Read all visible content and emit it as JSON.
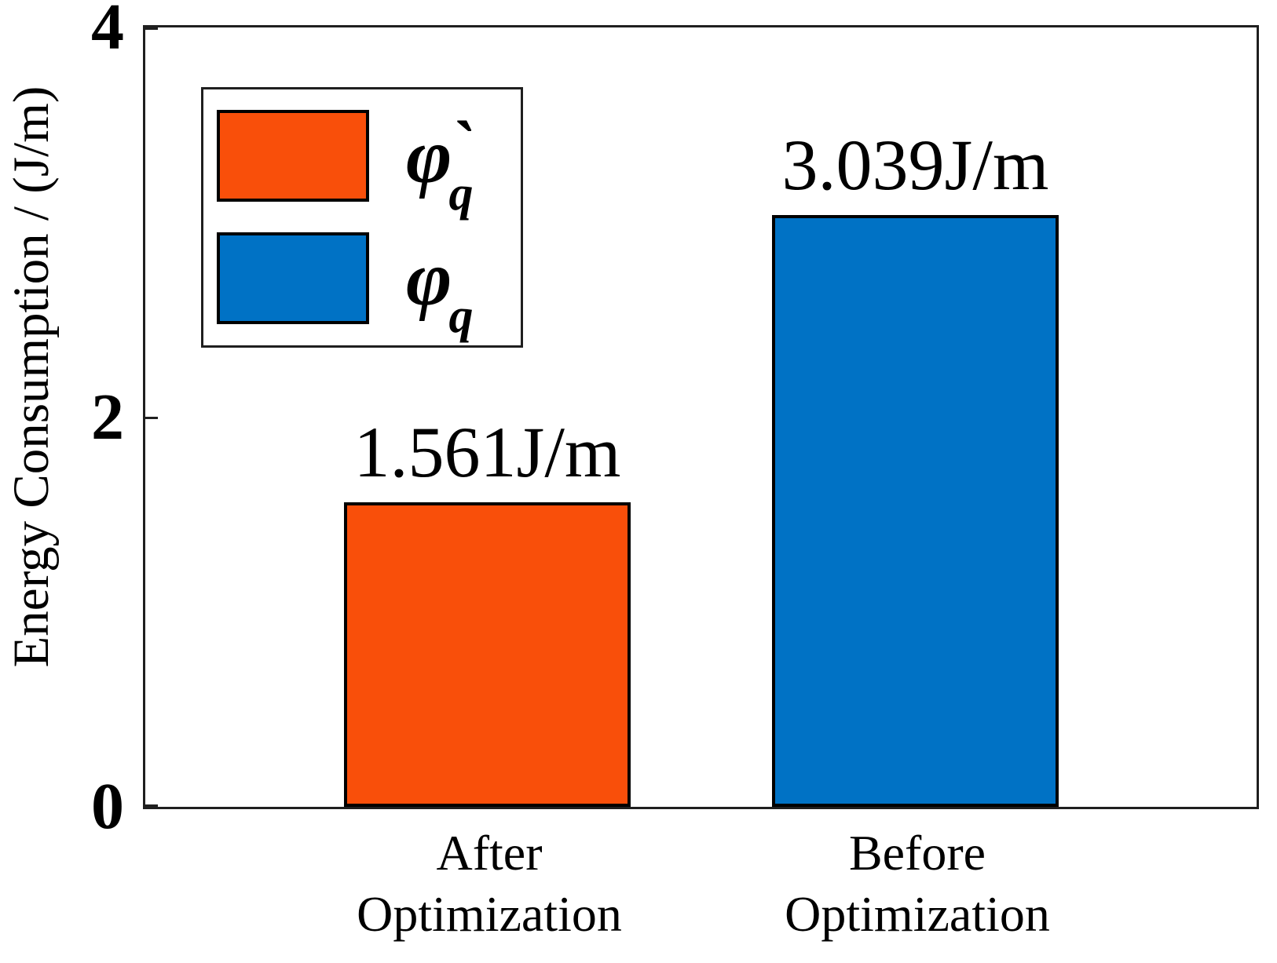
{
  "figure": {
    "background": "#ffffff",
    "axis_color": "#1f1f1f",
    "text_color": "#000000"
  },
  "chart_data": {
    "type": "bar",
    "title": "",
    "xlabel": "",
    "ylabel": "Energy Consumption / (J/m)",
    "categories": [
      "After Optimization",
      "Before Optimization"
    ],
    "values": [
      1.561,
      3.039
    ],
    "value_labels": [
      "1.561J/m",
      "3.039J/m"
    ],
    "bar_colors": [
      "#F94F0A",
      "#0072C5"
    ],
    "ylim": [
      0,
      4
    ],
    "yticks": [
      0,
      2,
      4
    ],
    "ytick_labels": [
      "0",
      "2",
      "4"
    ],
    "grid": false,
    "legend_position": "upper left",
    "legend_entries": [
      "φ̀q",
      "φq"
    ]
  },
  "legend": {
    "entries": [
      {
        "symbol": "φ",
        "accent": "`",
        "subscript": "q",
        "label": "φ̀q",
        "color": "#F94F0A"
      },
      {
        "symbol": "φ",
        "accent": "",
        "subscript": "q",
        "label": "φq",
        "color": "#0072C5"
      }
    ]
  }
}
